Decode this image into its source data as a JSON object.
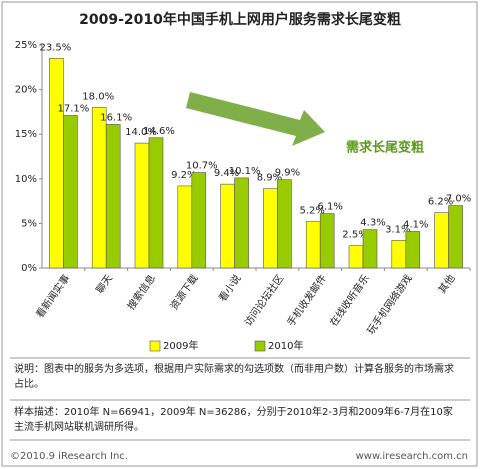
{
  "chart_data": {
    "type": "bar",
    "title": "2009-2010年中国手机上网用户服务需求长尾变粗",
    "categories": [
      "看新闻实事",
      "聊天",
      "搜索信息",
      "资源下载",
      "看小说",
      "访问论坛社区",
      "手机收发邮件",
      "在线收听音乐",
      "玩手机网络游戏",
      "其他"
    ],
    "series": [
      {
        "name": "2009年",
        "color": "#ffff00",
        "values": [
          23.5,
          18.0,
          14.0,
          9.2,
          9.4,
          8.9,
          5.2,
          2.5,
          3.1,
          6.2
        ],
        "value_labels": [
          "23.5%",
          "18.0%",
          "14.0%",
          "9.2%",
          "9.4%",
          "8.9%",
          "5.2%",
          "2.5%",
          "3.1%",
          "6.2%"
        ]
      },
      {
        "name": "2010年",
        "color": "#99cc00",
        "values": [
          17.1,
          16.1,
          14.6,
          10.7,
          10.1,
          9.9,
          6.1,
          4.3,
          4.1,
          7.0
        ],
        "value_labels": [
          "17.1%",
          "16.1%",
          "14.6%",
          "10.7%",
          "10.1%",
          "9.9%",
          "6.1%",
          "4.3%",
          "4.1%",
          "7.0%"
        ]
      }
    ],
    "ylim": [
      0,
      25
    ],
    "yticks": [
      {
        "value": 0,
        "label": "0%"
      },
      {
        "value": 5,
        "label": "5%"
      },
      {
        "value": 10,
        "label": "10%"
      },
      {
        "value": 15,
        "label": "15%"
      },
      {
        "value": 20,
        "label": "20%"
      },
      {
        "value": 25,
        "label": "25%"
      }
    ],
    "grid": false,
    "legend": "bottom",
    "annotation": "需求长尾变粗",
    "notes": [
      "说明：图表中的服务为多选项，根据用户实际需求的勾选项数（而非用户数）计算各服务的市场需求占比。",
      "样本描述：2010年 N=66941，2009年 N=36286，分别于2010年2-3月和2009年6-7月在10家主流手机网站联机调研所得。"
    ],
    "footer_left": "©2010.9 iResearch Inc.",
    "footer_right": "www.iresearch.com.cn"
  }
}
